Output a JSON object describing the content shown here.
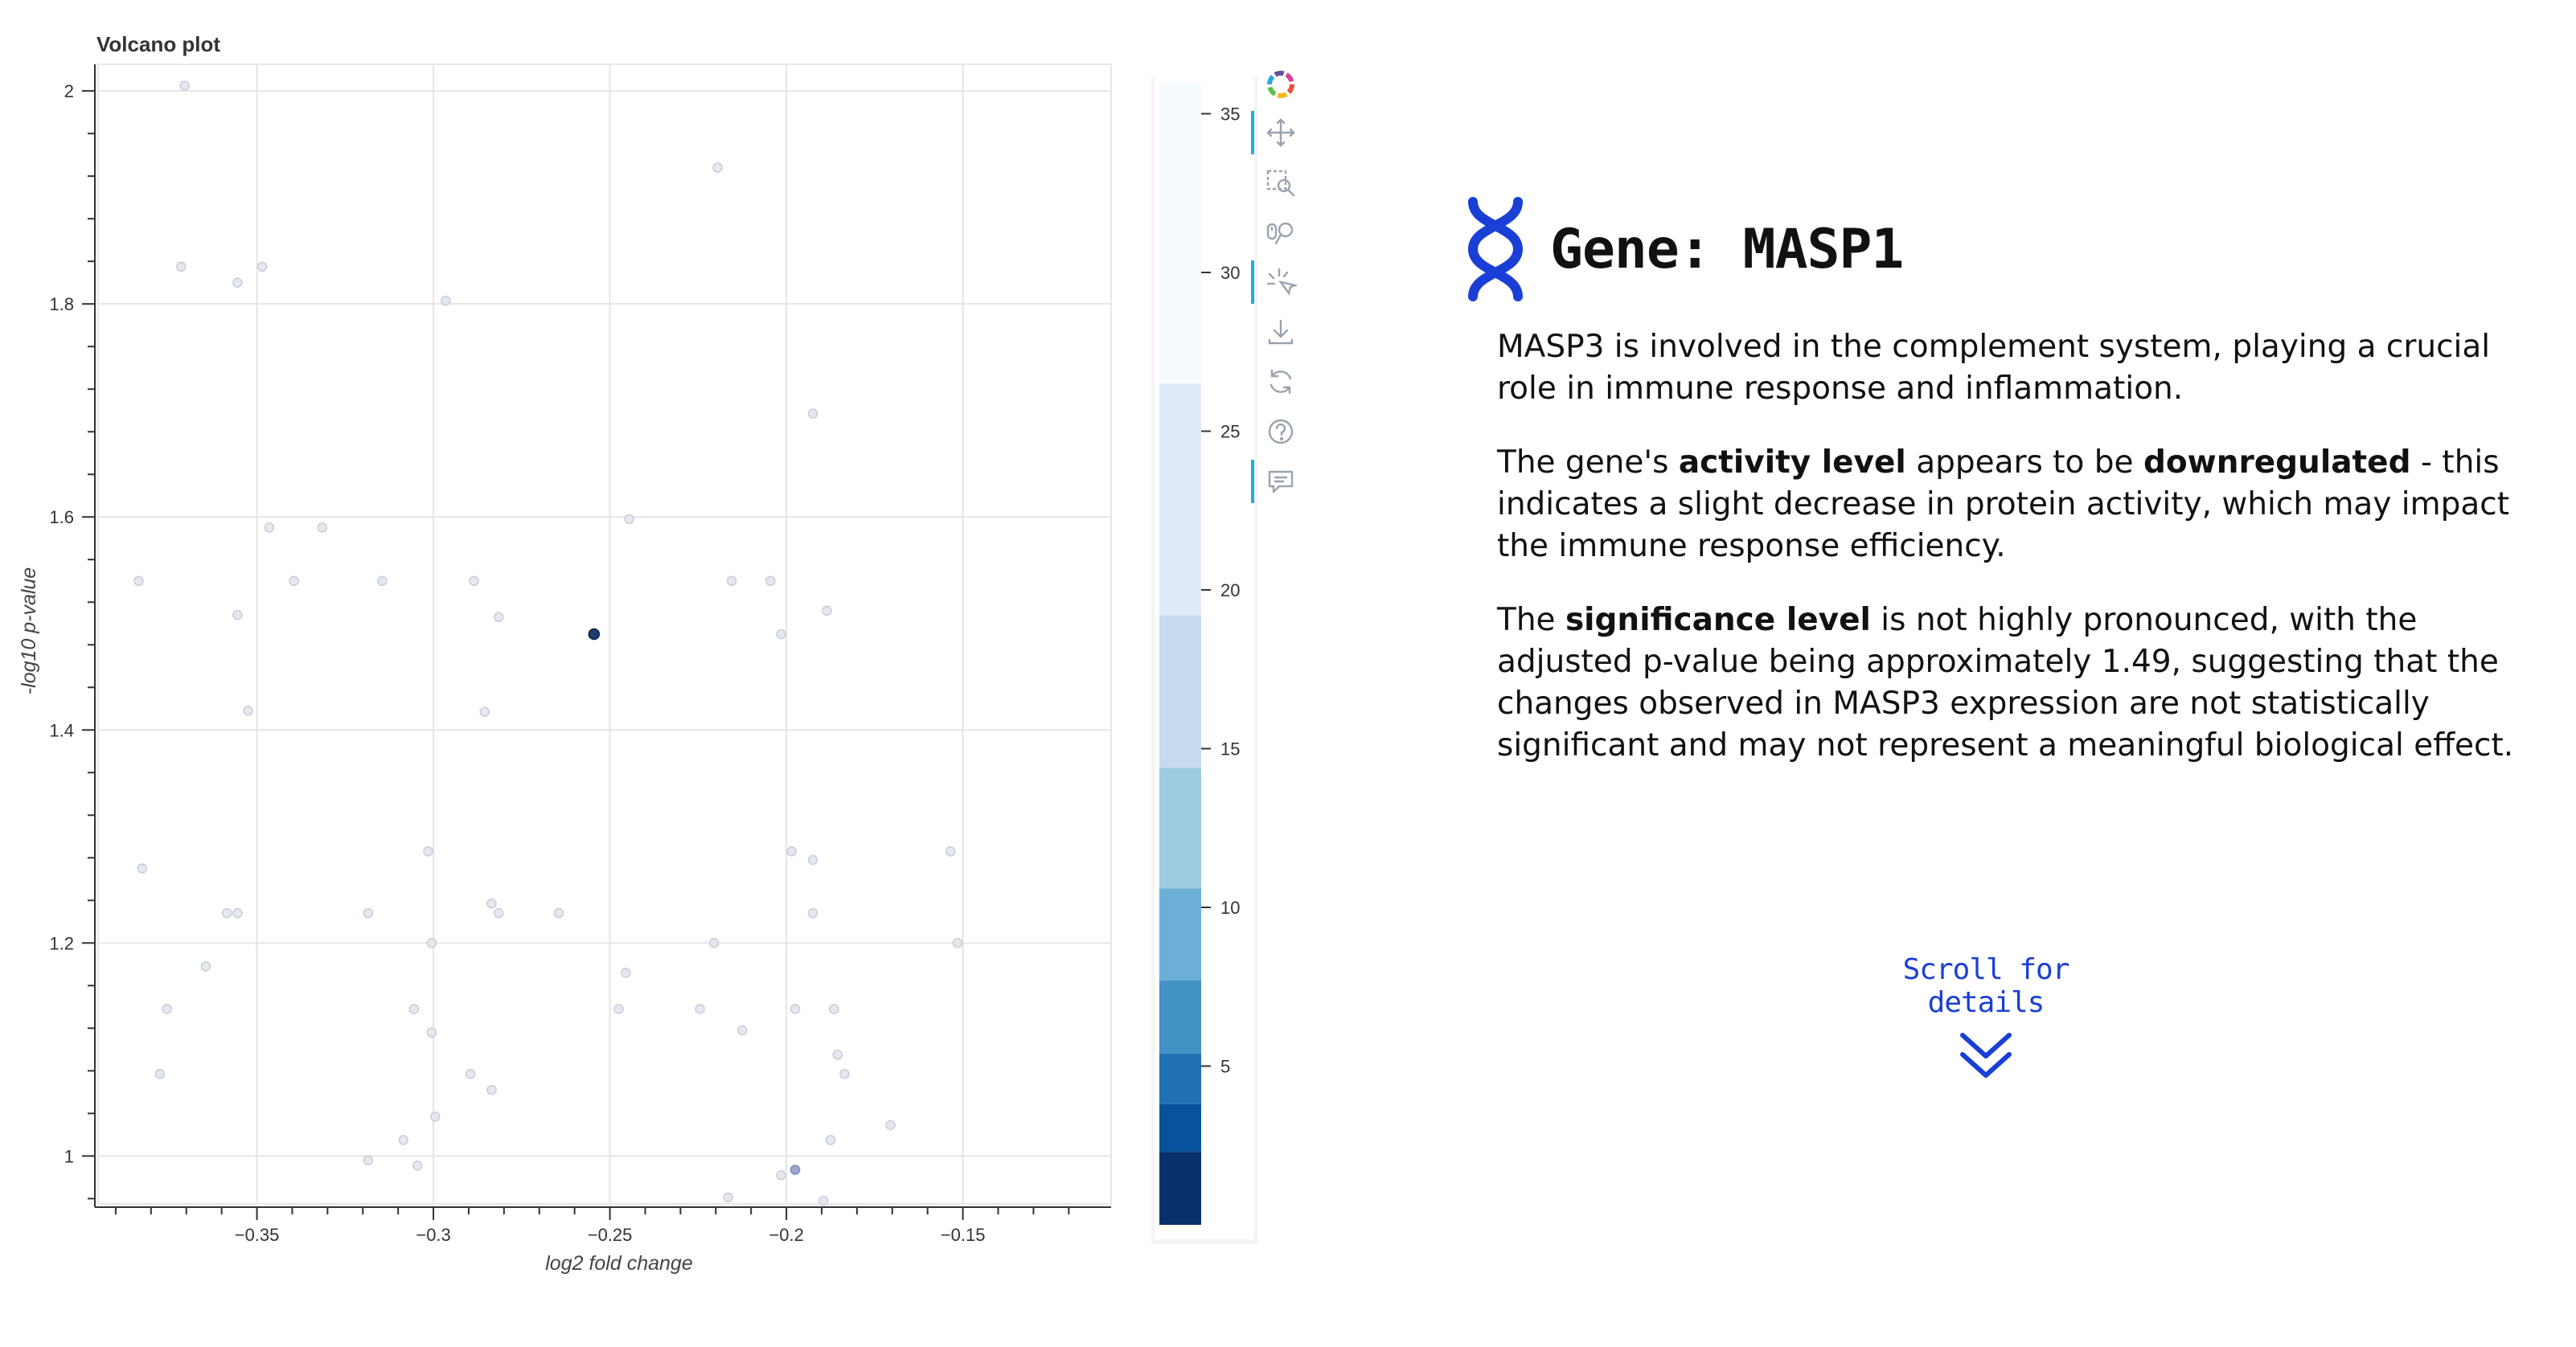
{
  "chart_data": {
    "type": "scatter",
    "title": "Volcano plot",
    "xlabel": "log2 fold change",
    "ylabel": "-log10 p-value",
    "xlim": [
      -0.395,
      -0.108
    ],
    "ylim": [
      0.955,
      2.025
    ],
    "x_ticks": [
      -0.35,
      -0.3,
      -0.25,
      -0.2,
      -0.15
    ],
    "x_tick_labels": [
      "−0.35",
      "−0.3",
      "−0.25",
      "−0.2",
      "−0.15"
    ],
    "y_ticks": [
      1.0,
      1.2,
      1.4,
      1.6,
      1.8,
      2.0
    ],
    "y_tick_labels": [
      "1",
      "1.2",
      "1.4",
      "1.6",
      "1.8",
      "2"
    ],
    "grid": true,
    "colorbar": {
      "range": [
        0,
        36
      ],
      "ticks": [
        5,
        10,
        15,
        20,
        25,
        30,
        35
      ],
      "bands": [
        {
          "from": 0,
          "to": 2.3,
          "color": "#08306b"
        },
        {
          "from": 2.3,
          "to": 3.8,
          "color": "#08519c"
        },
        {
          "from": 3.8,
          "to": 5.4,
          "color": "#2171b5"
        },
        {
          "from": 5.4,
          "to": 7.7,
          "color": "#4292c6"
        },
        {
          "from": 7.7,
          "to": 10.6,
          "color": "#6baed6"
        },
        {
          "from": 10.6,
          "to": 14.4,
          "color": "#9ecae1"
        },
        {
          "from": 14.4,
          "to": 19.2,
          "color": "#c6dbef"
        },
        {
          "from": 19.2,
          "to": 26.5,
          "color": "#deebf7"
        },
        {
          "from": 26.5,
          "to": 36,
          "color": "#f7fbff"
        }
      ]
    },
    "points": [
      {
        "x": -0.3705,
        "y": 2.005
      },
      {
        "x": -0.2195,
        "y": 1.928
      },
      {
        "x": -0.3715,
        "y": 1.835
      },
      {
        "x": -0.3485,
        "y": 1.835
      },
      {
        "x": -0.3555,
        "y": 1.82
      },
      {
        "x": -0.2965,
        "y": 1.803
      },
      {
        "x": -0.1925,
        "y": 1.697
      },
      {
        "x": -0.2445,
        "y": 1.598
      },
      {
        "x": -0.3465,
        "y": 1.59
      },
      {
        "x": -0.3315,
        "y": 1.59
      },
      {
        "x": -0.3835,
        "y": 1.54
      },
      {
        "x": -0.3395,
        "y": 1.54
      },
      {
        "x": -0.3145,
        "y": 1.54
      },
      {
        "x": -0.2885,
        "y": 1.54
      },
      {
        "x": -0.2155,
        "y": 1.54
      },
      {
        "x": -0.2045,
        "y": 1.54
      },
      {
        "x": -0.3555,
        "y": 1.508
      },
      {
        "x": -0.2815,
        "y": 1.506
      },
      {
        "x": -0.1885,
        "y": 1.512
      },
      {
        "x": -0.2015,
        "y": 1.49
      },
      {
        "x": -0.2545,
        "y": 1.49,
        "highlight": true
      },
      {
        "x": -0.3525,
        "y": 1.418
      },
      {
        "x": -0.2855,
        "y": 1.417
      },
      {
        "x": -0.3825,
        "y": 1.27
      },
      {
        "x": -0.3015,
        "y": 1.286
      },
      {
        "x": -0.1985,
        "y": 1.286
      },
      {
        "x": -0.1925,
        "y": 1.278
      },
      {
        "x": -0.1535,
        "y": 1.286
      },
      {
        "x": -0.3585,
        "y": 1.228
      },
      {
        "x": -0.3555,
        "y": 1.228
      },
      {
        "x": -0.3185,
        "y": 1.228
      },
      {
        "x": -0.2835,
        "y": 1.237
      },
      {
        "x": -0.2815,
        "y": 1.228
      },
      {
        "x": -0.2645,
        "y": 1.228
      },
      {
        "x": -0.1925,
        "y": 1.228
      },
      {
        "x": -0.3005,
        "y": 1.2
      },
      {
        "x": -0.2205,
        "y": 1.2
      },
      {
        "x": -0.1515,
        "y": 1.2
      },
      {
        "x": -0.3645,
        "y": 1.178
      },
      {
        "x": -0.2455,
        "y": 1.172
      },
      {
        "x": -0.3755,
        "y": 1.138
      },
      {
        "x": -0.3055,
        "y": 1.138
      },
      {
        "x": -0.2475,
        "y": 1.138
      },
      {
        "x": -0.2245,
        "y": 1.138
      },
      {
        "x": -0.1975,
        "y": 1.138
      },
      {
        "x": -0.1865,
        "y": 1.138
      },
      {
        "x": -0.3005,
        "y": 1.116
      },
      {
        "x": -0.2125,
        "y": 1.118
      },
      {
        "x": -0.1855,
        "y": 1.095
      },
      {
        "x": -0.3775,
        "y": 1.077
      },
      {
        "x": -0.2895,
        "y": 1.077
      },
      {
        "x": -0.1835,
        "y": 1.077
      },
      {
        "x": -0.2835,
        "y": 1.062
      },
      {
        "x": -0.2995,
        "y": 1.037
      },
      {
        "x": -0.1705,
        "y": 1.029
      },
      {
        "x": -0.3085,
        "y": 1.015
      },
      {
        "x": -0.1875,
        "y": 1.015
      },
      {
        "x": -0.3185,
        "y": 0.996
      },
      {
        "x": -0.3045,
        "y": 0.991
      },
      {
        "x": -0.1975,
        "y": 0.987,
        "tint": "mid"
      },
      {
        "x": -0.2015,
        "y": 0.982
      },
      {
        "x": -0.2165,
        "y": 0.961
      },
      {
        "x": -0.1895,
        "y": 0.958
      }
    ]
  },
  "info": {
    "gene_title": "Gene: MASP1",
    "paragraph1": "MASP3 is involved in the complement system, playing a crucial role in immune response and inflammation.",
    "p2_a": "The gene's ",
    "p2_b": "activity level",
    "p2_c": " appears to be ",
    "p2_d": "downregulated",
    "p2_e": " - this indicates a slight decrease in protein activity, which may impact the immune response efficiency.",
    "p3_a": "The ",
    "p3_b": "significance level",
    "p3_c": " is not highly pronounced, with the adjusted p-value being approximately 1.49, suggesting that the changes observed in MASP3 expression are not statistically significant and may not represent a meaningful biological effect.",
    "scroll_label": "Scroll for details"
  },
  "toolbar": {
    "tools": [
      {
        "icon": "bokeh-logo-icon",
        "active": false
      },
      {
        "icon": "pan-icon",
        "active": true
      },
      {
        "icon": "box-zoom-icon",
        "active": false
      },
      {
        "icon": "wheel-zoom-icon",
        "active": false
      },
      {
        "icon": "tap-select-icon",
        "active": true
      },
      {
        "icon": "save-icon",
        "active": false
      },
      {
        "icon": "reset-icon",
        "active": false
      },
      {
        "icon": "help-icon",
        "active": false
      },
      {
        "icon": "hover-icon",
        "active": true
      }
    ]
  },
  "colors": {
    "accent": "#1a3fd6",
    "point_fill": "#e6e8ef",
    "point_stroke": "#c9cfd9",
    "highlight_fill": "#1f3a6e",
    "grid": "#e5e5e5"
  }
}
